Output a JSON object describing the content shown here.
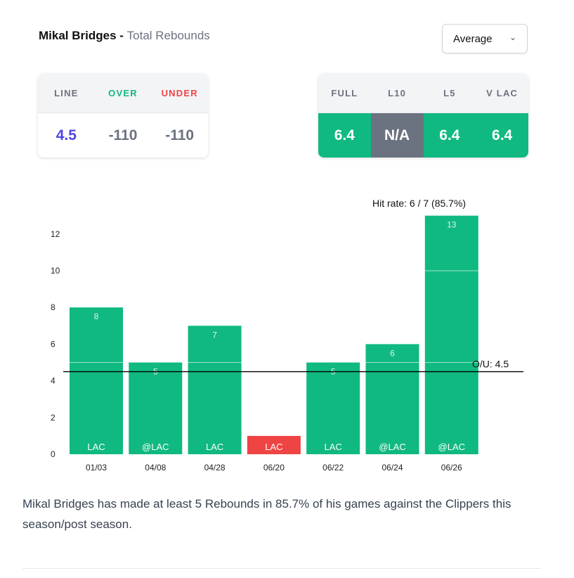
{
  "header": {
    "player": "Mikal Bridges",
    "separator": " - ",
    "market": "Total Rebounds",
    "select_value": "Average"
  },
  "odds": {
    "headers": [
      "LINE",
      "OVER",
      "UNDER"
    ],
    "values": [
      "4.5",
      "-110",
      "-110"
    ],
    "colors": [
      "#4f46e5",
      "#10b981",
      "#ef4444"
    ]
  },
  "stats": {
    "headers": [
      "FULL",
      "L10",
      "L5",
      "V LAC"
    ],
    "values": [
      "6.4",
      "N/A",
      "6.4",
      "6.4"
    ]
  },
  "chart_data": {
    "type": "bar",
    "categories": [
      "01/03",
      "04/08",
      "04/28",
      "06/20",
      "06/22",
      "06/24",
      "06/26"
    ],
    "opponents": [
      "LAC",
      "@LAC",
      "LAC",
      "LAC",
      "LAC",
      "@LAC",
      "@LAC"
    ],
    "values": [
      8,
      5,
      7,
      1,
      5,
      6,
      13
    ],
    "line": 4.5,
    "line_label": "O/U: 4.5",
    "hit_rate": "Hit rate: 6 / 7 (85.7%)",
    "yticks": [
      0,
      2,
      4,
      6,
      8,
      10,
      12
    ],
    "ylim": [
      0,
      13
    ],
    "colors": {
      "over": "#10b981",
      "under": "#ef4444"
    }
  },
  "description": "Mikal Bridges has made at least 5 Rebounds in 85.7% of his games against the Clippers this season/post season."
}
